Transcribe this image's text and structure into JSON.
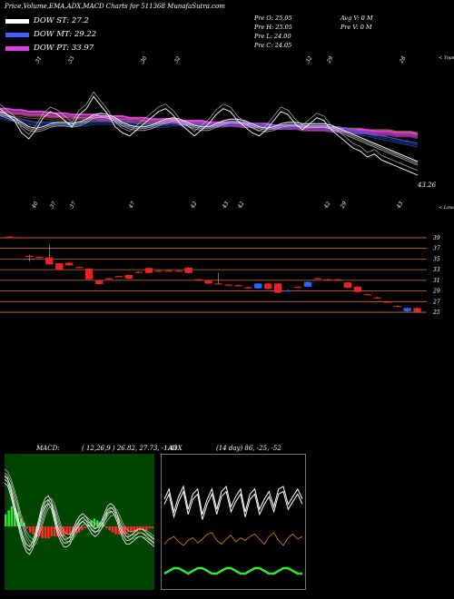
{
  "header": {
    "title": "Price,Volume,EMA,ADX,MACD Charts for 511368 MunafaSutra.com"
  },
  "legend": [
    {
      "label": "DOW ST: 27.2",
      "color": "#ffffff"
    },
    {
      "label": "DOW MT: 29.22",
      "color": "#3b62ff"
    },
    {
      "label": "DOW PT: 33.97",
      "color": "#e040e0"
    }
  ],
  "price_info": {
    "open": "Pre  O: 25.05",
    "high": "Pre  H: 25.05",
    "low": "Pre  L: 24.00",
    "close": "Pre  C: 24.05",
    "avg_vol": "Avg V: 0  M",
    "pre_vol": "Pre  V: 0  M"
  },
  "chart_data": [
    {
      "type": "line",
      "name": "price-ema",
      "top_labels": [
        "31",
        "33",
        "30",
        "32",
        "32",
        "29",
        "28"
      ],
      "bottom_labels": [
        "40",
        "37",
        "37",
        "47",
        "42",
        "43",
        "42",
        "42",
        "29",
        "43"
      ],
      "right_top_label": "< Tops",
      "right_bottom_label": "< Lows",
      "last_value_label": "43.26",
      "price": [
        62,
        58,
        54,
        46,
        42,
        48,
        56,
        60,
        58,
        54,
        50,
        58,
        62,
        70,
        64,
        58,
        50,
        46,
        44,
        48,
        52,
        56,
        60,
        62,
        58,
        52,
        48,
        44,
        48,
        52,
        58,
        62,
        60,
        54,
        50,
        46,
        44,
        48,
        54,
        60,
        58,
        52,
        48,
        52,
        56,
        54,
        48,
        44,
        40,
        36,
        34,
        30,
        32,
        28,
        26,
        24,
        22,
        20,
        18
      ],
      "ema_series": [
        {
          "color": "#ffffff",
          "values": [
            60,
            58,
            56,
            53,
            50,
            49,
            50,
            52,
            53,
            53,
            52,
            53,
            55,
            58,
            59,
            58,
            56,
            53,
            51,
            50,
            50,
            51,
            53,
            55,
            56,
            55,
            53,
            51,
            50,
            50,
            52,
            54,
            55,
            55,
            54,
            52,
            50,
            49,
            50,
            52,
            53,
            53,
            52,
            52,
            52,
            52,
            51,
            49,
            47,
            45,
            43,
            41,
            39,
            37,
            35,
            33,
            31,
            29,
            27
          ]
        },
        {
          "color": "#3b62ff",
          "values": [
            58,
            57,
            56,
            55,
            54,
            53,
            53,
            53,
            53,
            53,
            53,
            53,
            53,
            54,
            54,
            54,
            54,
            53,
            53,
            52,
            52,
            52,
            52,
            52,
            53,
            53,
            52,
            52,
            52,
            52,
            52,
            52,
            53,
            53,
            53,
            52,
            52,
            51,
            51,
            51,
            51,
            51,
            51,
            51,
            51,
            51,
            50,
            50,
            49,
            48,
            47,
            46,
            45,
            44,
            43,
            42,
            41,
            40,
            39
          ]
        },
        {
          "color": "#e040e0",
          "values": [
            62,
            62,
            61,
            61,
            60,
            60,
            60,
            59,
            59,
            59,
            58,
            58,
            58,
            58,
            57,
            57,
            57,
            57,
            56,
            56,
            56,
            55,
            55,
            55,
            55,
            54,
            54,
            54,
            54,
            53,
            53,
            53,
            53,
            53,
            52,
            52,
            52,
            52,
            51,
            51,
            51,
            51,
            50,
            50,
            50,
            50,
            49,
            49,
            49,
            48,
            48,
            48,
            47,
            47,
            47,
            46,
            46,
            46,
            45
          ]
        },
        {
          "color": "#b07a2a",
          "values": [
            60,
            60,
            59,
            59,
            58,
            58,
            58,
            57,
            57,
            57,
            57,
            56,
            56,
            56,
            56,
            56,
            55,
            55,
            55,
            55,
            54,
            54,
            54,
            54,
            54,
            54,
            53,
            53,
            53,
            53,
            53,
            53,
            53,
            52,
            52,
            52,
            52,
            52,
            51,
            51,
            51,
            51,
            51,
            50,
            50,
            50,
            50,
            50,
            49,
            49,
            49,
            48,
            48,
            48,
            48,
            47,
            47,
            47,
            46
          ]
        }
      ]
    },
    {
      "type": "candlestick",
      "name": "price-candles",
      "y_ticks": [
        "39",
        "37",
        "35",
        "33",
        "31",
        "29",
        "27",
        "25"
      ],
      "candles": [
        {
          "o": 39.2,
          "c": 39.1,
          "h": 39.3,
          "l": 39.0,
          "up": false
        },
        {
          "o": 39.1,
          "c": 39.0,
          "h": 39.2,
          "l": 38.9,
          "up": false
        },
        {
          "o": 35.6,
          "c": 35.5,
          "h": 35.8,
          "l": 34.5,
          "up": false
        },
        {
          "o": 35.4,
          "c": 35.3,
          "h": 35.5,
          "l": 35.2,
          "up": false
        },
        {
          "o": 35.3,
          "c": 34.0,
          "h": 37.8,
          "l": 33.9,
          "up": false
        },
        {
          "o": 34.2,
          "c": 33.0,
          "h": 34.3,
          "l": 32.9,
          "up": false
        },
        {
          "o": 34.3,
          "c": 33.8,
          "h": 34.4,
          "l": 33.7,
          "up": false
        },
        {
          "o": 33.5,
          "c": 33.4,
          "h": 33.6,
          "l": 33.3,
          "up": false
        },
        {
          "o": 33.2,
          "c": 31.2,
          "h": 33.3,
          "l": 31.1,
          "up": false
        },
        {
          "o": 30.9,
          "c": 30.3,
          "h": 31.0,
          "l": 30.2,
          "up": false
        },
        {
          "o": 31.4,
          "c": 31.3,
          "h": 31.5,
          "l": 31.2,
          "up": false
        },
        {
          "o": 31.8,
          "c": 31.7,
          "h": 31.9,
          "l": 31.6,
          "up": false
        },
        {
          "o": 32.0,
          "c": 31.3,
          "h": 32.1,
          "l": 31.2,
          "up": false
        },
        {
          "o": 32.6,
          "c": 32.5,
          "h": 32.7,
          "l": 32.4,
          "up": false
        },
        {
          "o": 33.3,
          "c": 32.4,
          "h": 33.4,
          "l": 32.3,
          "up": false
        },
        {
          "o": 32.8,
          "c": 32.7,
          "h": 32.9,
          "l": 32.6,
          "up": false
        },
        {
          "o": 32.8,
          "c": 32.7,
          "h": 32.9,
          "l": 32.6,
          "up": false
        },
        {
          "o": 32.8,
          "c": 32.7,
          "h": 32.9,
          "l": 32.6,
          "up": false
        },
        {
          "o": 33.4,
          "c": 32.4,
          "h": 33.5,
          "l": 32.3,
          "up": false
        },
        {
          "o": 31.2,
          "c": 31.1,
          "h": 31.3,
          "l": 31.0,
          "up": false
        },
        {
          "o": 31.0,
          "c": 30.4,
          "h": 31.1,
          "l": 30.3,
          "up": false
        },
        {
          "o": 30.4,
          "c": 30.3,
          "h": 32.4,
          "l": 30.2,
          "up": false
        },
        {
          "o": 30.2,
          "c": 30.1,
          "h": 30.3,
          "l": 30.0,
          "up": false
        },
        {
          "o": 30.1,
          "c": 29.9,
          "h": 30.2,
          "l": 29.8,
          "up": false
        },
        {
          "o": 29.7,
          "c": 29.5,
          "h": 29.8,
          "l": 29.4,
          "up": false
        },
        {
          "o": 29.5,
          "c": 30.4,
          "h": 30.5,
          "l": 29.4,
          "up": true
        },
        {
          "o": 30.4,
          "c": 29.4,
          "h": 30.5,
          "l": 29.3,
          "up": false
        },
        {
          "o": 30.4,
          "c": 28.7,
          "h": 30.5,
          "l": 28.6,
          "up": false
        },
        {
          "o": 29.0,
          "c": 29.1,
          "h": 29.3,
          "l": 28.9,
          "up": true
        },
        {
          "o": 29.8,
          "c": 29.7,
          "h": 29.9,
          "l": 29.6,
          "up": false
        },
        {
          "o": 29.8,
          "c": 30.7,
          "h": 30.8,
          "l": 29.7,
          "up": true
        },
        {
          "o": 31.4,
          "c": 31.3,
          "h": 31.5,
          "l": 31.2,
          "up": false
        },
        {
          "o": 31.2,
          "c": 31.1,
          "h": 31.3,
          "l": 31.0,
          "up": false
        },
        {
          "o": 31.2,
          "c": 31.1,
          "h": 31.3,
          "l": 31.0,
          "up": false
        },
        {
          "o": 30.6,
          "c": 29.6,
          "h": 30.7,
          "l": 29.5,
          "up": false
        },
        {
          "o": 29.8,
          "c": 28.8,
          "h": 29.9,
          "l": 28.7,
          "up": false
        },
        {
          "o": 28.4,
          "c": 28.3,
          "h": 28.5,
          "l": 28.2,
          "up": false
        },
        {
          "o": 27.8,
          "c": 27.7,
          "h": 27.9,
          "l": 27.6,
          "up": false
        },
        {
          "o": 27.0,
          "c": 26.9,
          "h": 27.1,
          "l": 26.8,
          "up": false
        },
        {
          "o": 26.2,
          "c": 26.1,
          "h": 26.3,
          "l": 26.0,
          "up": false
        },
        {
          "o": 25.2,
          "c": 25.8,
          "h": 25.9,
          "l": 25.1,
          "up": true
        },
        {
          "o": 25.8,
          "c": 25.1,
          "h": 25.9,
          "l": 25.0,
          "up": false
        }
      ]
    },
    {
      "type": "bar",
      "name": "macd",
      "title": "MACD:",
      "params": "( 12,26,9 ) 26.82, 27.73, -1.41",
      "histogram": [
        6,
        8,
        10,
        9,
        7,
        4,
        2,
        -1,
        -3,
        -4,
        -5,
        -5,
        -6,
        -6,
        -6,
        -5,
        -5,
        -5,
        -5,
        -5,
        -4,
        -4,
        -4,
        -3,
        -3,
        -2,
        -1,
        1,
        3,
        4,
        3,
        2,
        1,
        -1,
        -2,
        -3,
        -4,
        -4,
        -4,
        -4,
        -3,
        -3,
        -3,
        -3,
        -2,
        -2,
        -2,
        -1,
        -1
      ],
      "macd_line": [
        90,
        88,
        80,
        70,
        60,
        50,
        42,
        36,
        34,
        38,
        46,
        56,
        66,
        72,
        74,
        70,
        60,
        50,
        44,
        40,
        40,
        42,
        48,
        54,
        58,
        60,
        58,
        54,
        50,
        48,
        50,
        54,
        60,
        66,
        68,
        66,
        60,
        52,
        46,
        42,
        42,
        44,
        46,
        48,
        48,
        46,
        44,
        42,
        40
      ],
      "signal_line": [
        95,
        93,
        88,
        80,
        72,
        62,
        54,
        46,
        42,
        40,
        42,
        48,
        56,
        64,
        70,
        72,
        68,
        60,
        52,
        46,
        44,
        44,
        46,
        50,
        54,
        57,
        58,
        56,
        54,
        52,
        52,
        54,
        57,
        61,
        64,
        65,
        63,
        58,
        52,
        48,
        46,
        46,
        47,
        48,
        48,
        47,
        46,
        44,
        42
      ]
    },
    {
      "type": "line",
      "name": "adx",
      "title": "ADX",
      "params": "(14 day) 86, -25, -52",
      "adx": [
        30,
        22,
        40,
        28,
        20,
        38,
        26,
        22,
        42,
        30,
        22,
        38,
        24,
        20,
        36,
        28,
        22,
        40,
        26,
        22,
        38,
        30,
        24,
        36,
        22,
        20,
        34,
        28,
        22,
        30
      ],
      "adx2": [
        34,
        26,
        44,
        32,
        24,
        42,
        30,
        26,
        46,
        34,
        26,
        42,
        28,
        24,
        40,
        32,
        26,
        44,
        30,
        26,
        42,
        34,
        28,
        40,
        26,
        24,
        38,
        32,
        26,
        34
      ],
      "plus_di": [
        78,
        70,
        66,
        74,
        80,
        72,
        68,
        76,
        70,
        62,
        60,
        72,
        78,
        70,
        64,
        74,
        68,
        72,
        66,
        62,
        70,
        78,
        66,
        60,
        72,
        80,
        68,
        62,
        70,
        66
      ],
      "minus_di": [
        88,
        86,
        84,
        84,
        86,
        88,
        86,
        84,
        84,
        86,
        88,
        88,
        86,
        84,
        84,
        86,
        88,
        88,
        86,
        84,
        84,
        86,
        88,
        88,
        86,
        84,
        84,
        86,
        88,
        88
      ]
    }
  ],
  "colors": {
    "macd_bg": "#004400",
    "hist_pos": "#33dd33",
    "hist_neg": "#ff2a2a",
    "down_candle": "#ee2222",
    "up_candle": "#2a66ff",
    "level_line": "#c8763a",
    "adx_orange": "#d07a1a",
    "adx_green": "#2ee62e"
  }
}
